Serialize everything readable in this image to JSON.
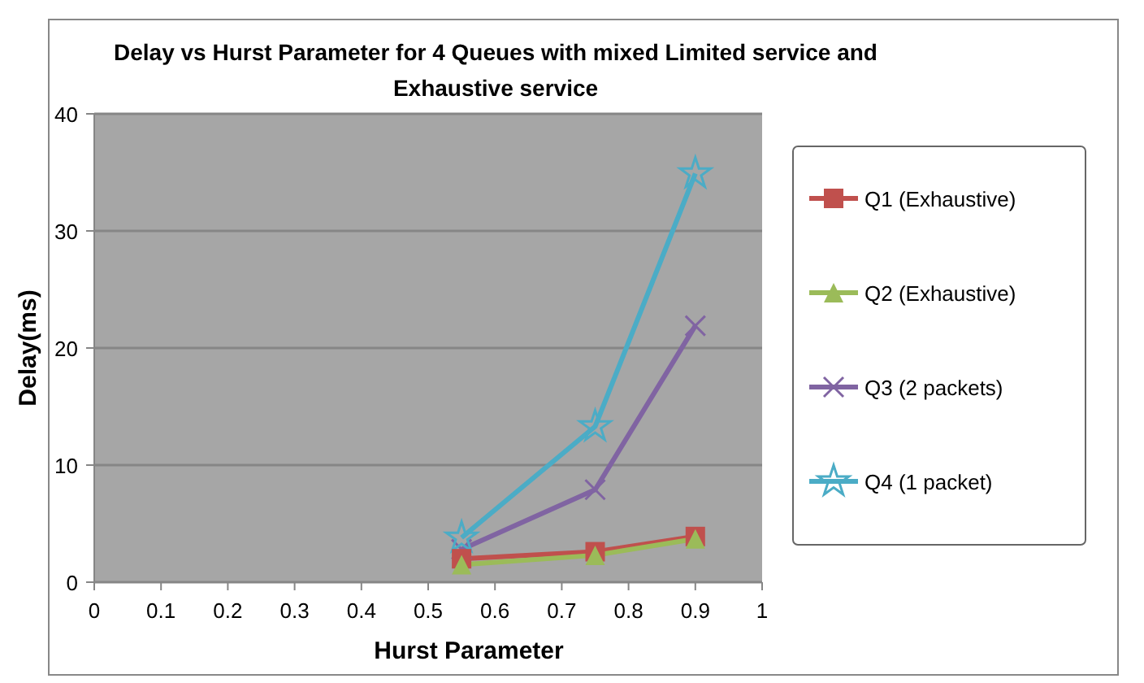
{
  "chart_data": {
    "type": "line",
    "title": "Delay vs Hurst Parameter for 4 Queues  with mixed Limited service and Exhaustive service",
    "xlabel": "Hurst Parameter",
    "ylabel": "Delay(ms)",
    "x": [
      0.55,
      0.75,
      0.9
    ],
    "series": [
      {
        "name": "Q1 (Exhaustive)",
        "color": "#c0504d",
        "marker": "square",
        "values": [
          2.0,
          2.6,
          3.9
        ]
      },
      {
        "name": "Q2 (Exhaustive)",
        "color": "#9bbb59",
        "marker": "triangle",
        "values": [
          1.5,
          2.3,
          3.7
        ]
      },
      {
        "name": "Q3 (2 packets)",
        "color": "#8064a2",
        "marker": "cross",
        "values": [
          2.8,
          7.9,
          21.9
        ]
      },
      {
        "name": "Q4 (1 packet)",
        "color": "#4bacc6",
        "marker": "star",
        "values": [
          3.8,
          13.3,
          34.9
        ]
      }
    ],
    "xlim": [
      0,
      1
    ],
    "xticks": [
      0,
      0.1,
      0.2,
      0.3,
      0.4,
      0.5,
      0.6,
      0.7,
      0.8,
      0.9,
      1
    ],
    "ylim": [
      0,
      40
    ],
    "yticks": [
      0,
      10,
      20,
      30,
      40
    ],
    "grid": "y",
    "legend": "right"
  }
}
